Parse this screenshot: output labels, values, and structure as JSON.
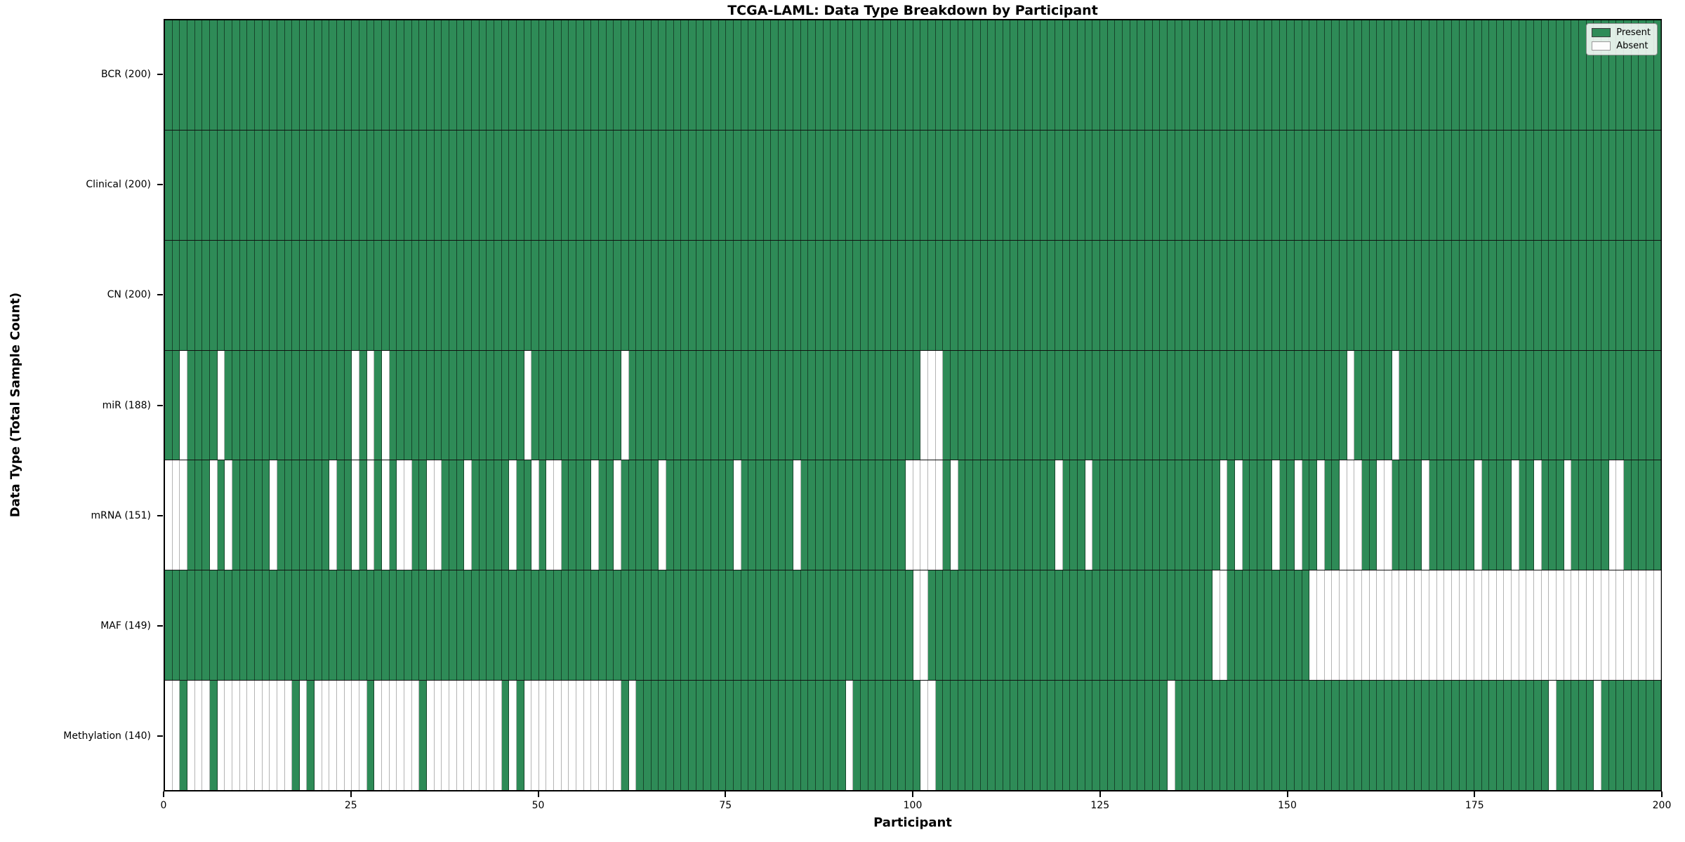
{
  "title": "TCGA-LAML: Data Type Breakdown by Participant",
  "x_axis_label": "Participant",
  "y_axis_label": "Data Type (Total Sample Count)",
  "legend": {
    "present_label": "Present",
    "absent_label": "Absent"
  },
  "colors": {
    "present": "#2e8b57",
    "absent": "#ffffff",
    "row_divider": "#111111",
    "spine": "#000000"
  },
  "x_ticks": [
    0,
    25,
    50,
    75,
    100,
    125,
    150,
    175,
    200
  ],
  "n_participants": 200,
  "chart_data": {
    "type": "heatmap",
    "title": "TCGA-LAML: Data Type Breakdown by Participant",
    "xlabel": "Participant",
    "ylabel": "Data Type (Total Sample Count)",
    "xlim": [
      0,
      200
    ],
    "legend_position": "upper right",
    "value_meaning": {
      "present": 1,
      "absent": 0
    },
    "rows": [
      {
        "label": "BCR (200)",
        "name": "BCR",
        "present_count": 200,
        "absent_participants": []
      },
      {
        "label": "Clinical (200)",
        "name": "Clinical",
        "present_count": 200,
        "absent_participants": []
      },
      {
        "label": "CN (200)",
        "name": "CN",
        "present_count": 200,
        "absent_participants": []
      },
      {
        "label": "miR (188)",
        "name": "miR",
        "present_count": 188,
        "absent_participants": [
          2,
          7,
          25,
          27,
          29,
          48,
          61,
          101,
          102,
          103,
          158,
          164
        ]
      },
      {
        "label": "mRNA (151)",
        "name": "mRNA",
        "present_count": 151,
        "absent_participants": [
          0,
          1,
          2,
          6,
          8,
          14,
          22,
          25,
          27,
          29,
          31,
          32,
          35,
          36,
          40,
          46,
          49,
          51,
          52,
          57,
          60,
          66,
          76,
          84,
          99,
          100,
          101,
          102,
          103,
          105,
          119,
          123,
          141,
          143,
          148,
          151,
          154,
          157,
          158,
          159,
          162,
          163,
          168,
          175,
          180,
          183,
          187,
          193,
          194
        ]
      },
      {
        "label": "MAF (149)",
        "name": "MAF",
        "present_count": 149,
        "absent_participants": [
          100,
          101,
          140,
          141,
          153,
          154,
          155,
          156,
          157,
          158,
          159,
          160,
          161,
          162,
          163,
          164,
          165,
          166,
          167,
          168,
          169,
          170,
          171,
          172,
          173,
          174,
          175,
          176,
          177,
          178,
          179,
          180,
          181,
          182,
          183,
          184,
          185,
          186,
          187,
          188,
          189,
          190,
          191,
          192,
          193,
          194,
          195,
          196,
          197,
          198,
          199
        ]
      },
      {
        "label": "Methylation (140)",
        "name": "Methylation",
        "present_count": 140,
        "absent_participants": [
          0,
          1,
          3,
          4,
          5,
          7,
          8,
          9,
          10,
          11,
          12,
          13,
          14,
          15,
          16,
          18,
          20,
          21,
          22,
          23,
          24,
          25,
          26,
          28,
          29,
          30,
          31,
          32,
          33,
          35,
          36,
          37,
          38,
          39,
          40,
          41,
          42,
          43,
          44,
          46,
          48,
          49,
          50,
          51,
          52,
          53,
          54,
          55,
          56,
          57,
          58,
          59,
          60,
          62,
          91,
          101,
          102,
          134,
          185,
          191
        ]
      }
    ]
  }
}
